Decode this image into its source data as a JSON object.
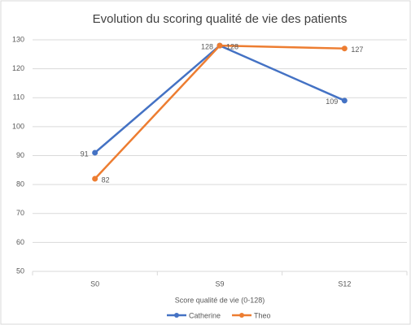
{
  "chart_data": {
    "type": "line",
    "title": "Evolution du scoring qualité de vie des patients",
    "x_label": "Score qualité de vie (0-128)",
    "categories": [
      "S0",
      "S9",
      "S12"
    ],
    "series": [
      {
        "name": "Catherine",
        "color": "#4472c4",
        "values": [
          91,
          128,
          109
        ]
      },
      {
        "name": "Theo",
        "color": "#ed7d31",
        "values": [
          82,
          128,
          127
        ]
      }
    ],
    "ylim": [
      50,
      130
    ],
    "yticks": [
      50,
      60,
      70,
      80,
      90,
      100,
      110,
      120,
      130
    ],
    "grid": true,
    "legend": "bottom",
    "data_labels": true
  }
}
